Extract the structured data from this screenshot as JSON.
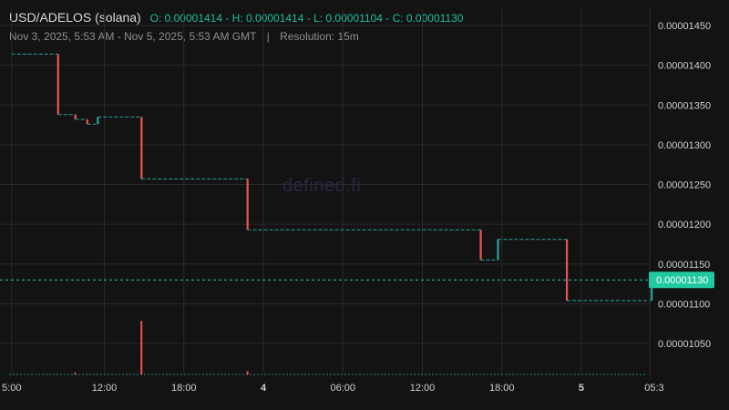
{
  "header": {
    "pair": "USD/ADELOS (solana)",
    "ohlc": "O: 0.00001414 - H: 0.00001414 - L: 0.00001104 - C: 0.00001130",
    "range": "Nov 3, 2025, 5:53 AM - Nov 5, 2025, 5:53 AM GMT",
    "separator": "|",
    "resolution": "Resolution: 15m"
  },
  "watermark": "defined.fi",
  "last_price_label": "0.00001130",
  "colors": {
    "up": "#26a69a",
    "down": "#ef5350",
    "background": "#131313",
    "grid": "#2a2a2a",
    "last_price_tag": "#22c9a0"
  },
  "chart_data": {
    "type": "candlestick",
    "title": "USD/ADELOS (solana)",
    "resolution": "15m",
    "y_ticks": [
      "0.00001050",
      "0.00001100",
      "0.00001150",
      "0.00001200",
      "0.00001250",
      "0.00001300",
      "0.00001350",
      "0.00001400",
      "0.00001450"
    ],
    "ylim": [
      1.013e-05,
      1.466e-05
    ],
    "x_ticks": [
      {
        "label": "5:00",
        "hours": 5,
        "bold": false
      },
      {
        "label": "12:00",
        "hours": 12,
        "bold": false
      },
      {
        "label": "18:00",
        "hours": 18,
        "bold": false
      },
      {
        "label": "4",
        "hours": 24,
        "bold": true
      },
      {
        "label": "06:00",
        "hours": 30,
        "bold": false
      },
      {
        "label": "12:00",
        "hours": 36,
        "bold": false
      },
      {
        "label": "18:00",
        "hours": 42,
        "bold": false
      },
      {
        "label": "5",
        "hours": 48,
        "bold": true
      },
      {
        "label": "05:3",
        "hours": 53.5,
        "bold": false
      }
    ],
    "segments": [
      {
        "t0": 5.0,
        "t1": 8.5,
        "open": 1.414e-05,
        "close": 1.414e-05
      },
      {
        "t0": 8.5,
        "t1": 9.8,
        "open": 1.414e-05,
        "close": 1.338e-05
      },
      {
        "t0": 9.8,
        "t1": 10.7,
        "open": 1.338e-05,
        "close": 1.332e-05
      },
      {
        "t0": 10.7,
        "t1": 11.5,
        "open": 1.332e-05,
        "close": 1.326e-05
      },
      {
        "t0": 11.5,
        "t1": 14.8,
        "open": 1.326e-05,
        "close": 1.335e-05
      },
      {
        "t0": 14.8,
        "t1": 22.8,
        "open": 1.335e-05,
        "close": 1.257e-05
      },
      {
        "t0": 22.8,
        "t1": 40.4,
        "open": 1.257e-05,
        "close": 1.193e-05
      },
      {
        "t0": 40.4,
        "t1": 41.7,
        "open": 1.193e-05,
        "close": 1.155e-05
      },
      {
        "t0": 41.7,
        "t1": 46.9,
        "open": 1.155e-05,
        "close": 1.181e-05
      },
      {
        "t0": 46.9,
        "t1": 53.3,
        "open": 1.181e-05,
        "close": 1.104e-05
      },
      {
        "t0": 53.3,
        "t1": 53.5,
        "open": 1.104e-05,
        "close": 1.13e-05
      }
    ],
    "last_price": 1.13e-05,
    "volume_spikes": [
      {
        "t": 14.8,
        "value": 0.84,
        "dir": "down"
      },
      {
        "t": 9.8,
        "value": 0.03,
        "dir": "down"
      },
      {
        "t": 22.8,
        "value": 0.05,
        "dir": "down"
      }
    ],
    "grid": true
  }
}
